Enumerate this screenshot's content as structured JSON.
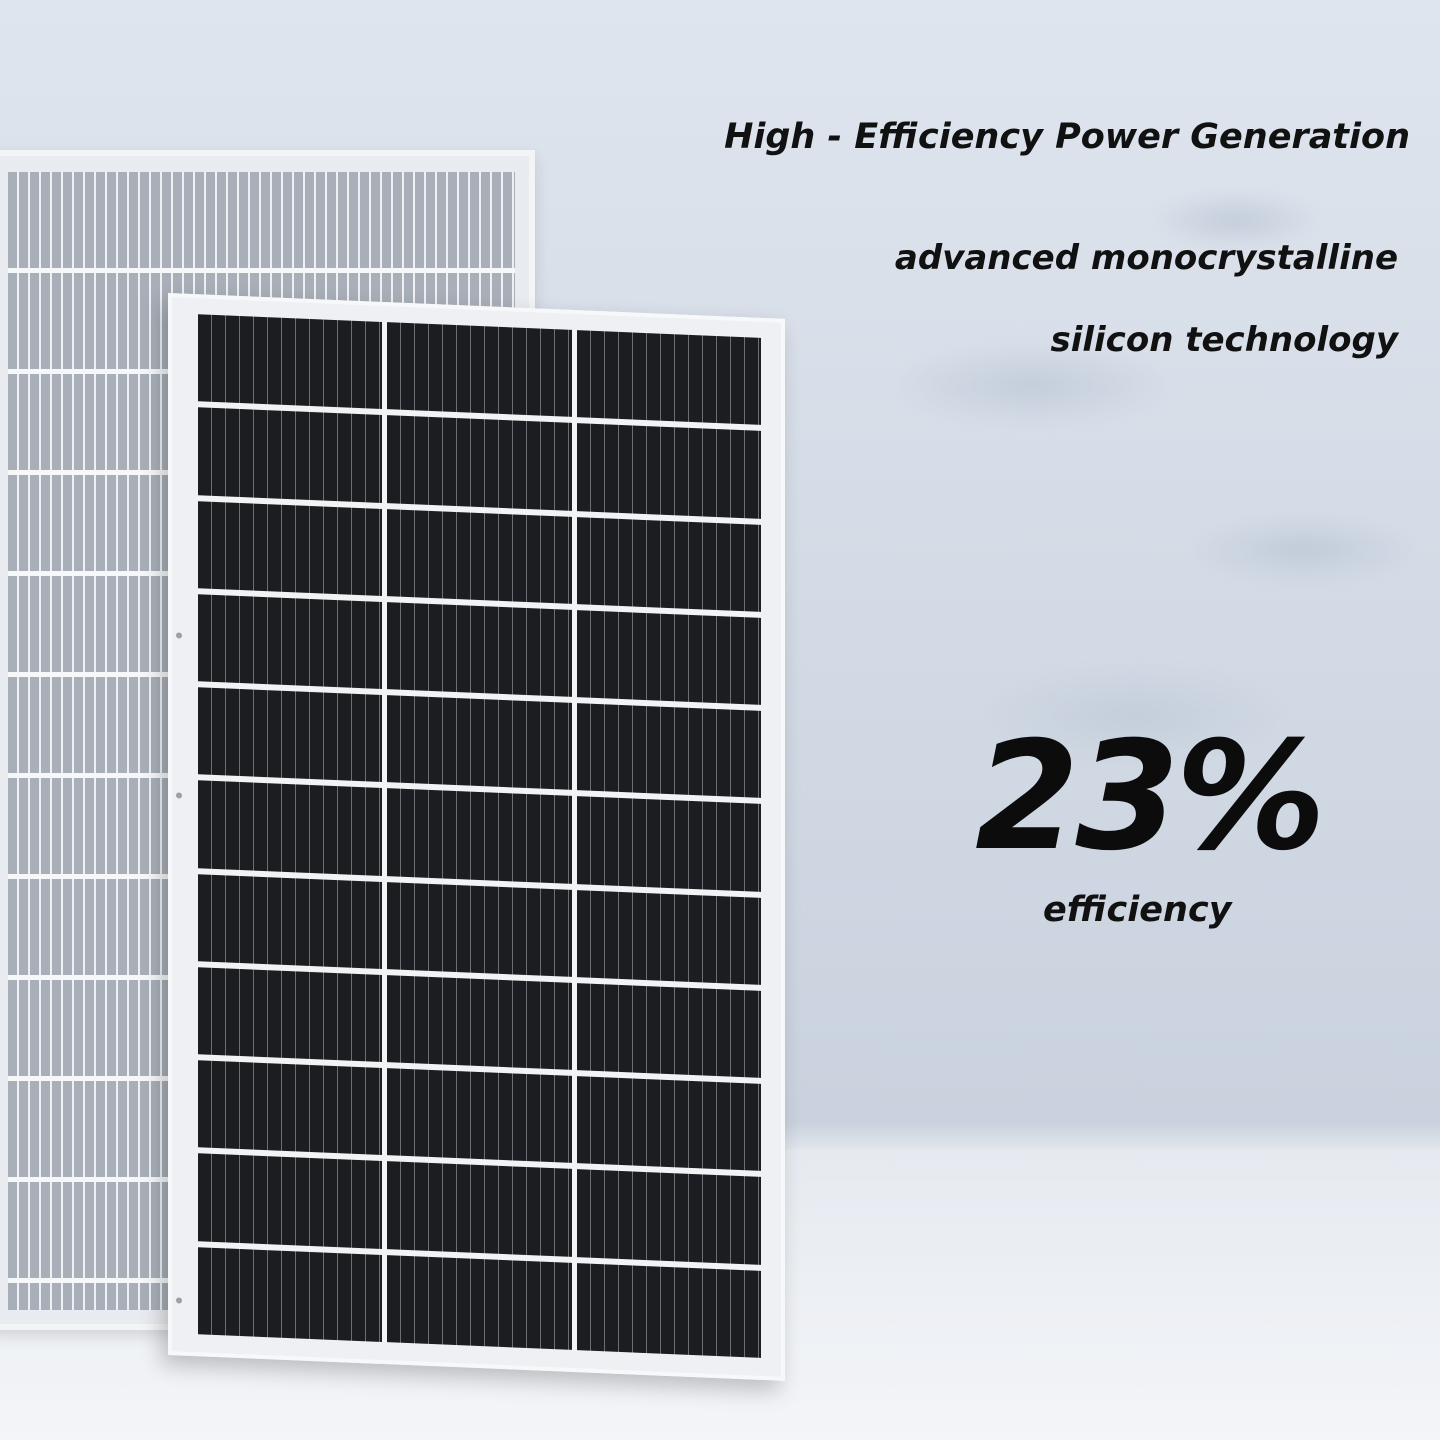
{
  "headline": "High - Efficiency Power Generation",
  "subline1": "advanced monocrystalline",
  "subline2": "silicon technology",
  "stat": {
    "value": "23%",
    "label": "efficiency"
  },
  "colors": {
    "text": "#111111",
    "cell": "#1c1d20",
    "frame": "#f2f4f6",
    "background": "#d3dbe6"
  }
}
